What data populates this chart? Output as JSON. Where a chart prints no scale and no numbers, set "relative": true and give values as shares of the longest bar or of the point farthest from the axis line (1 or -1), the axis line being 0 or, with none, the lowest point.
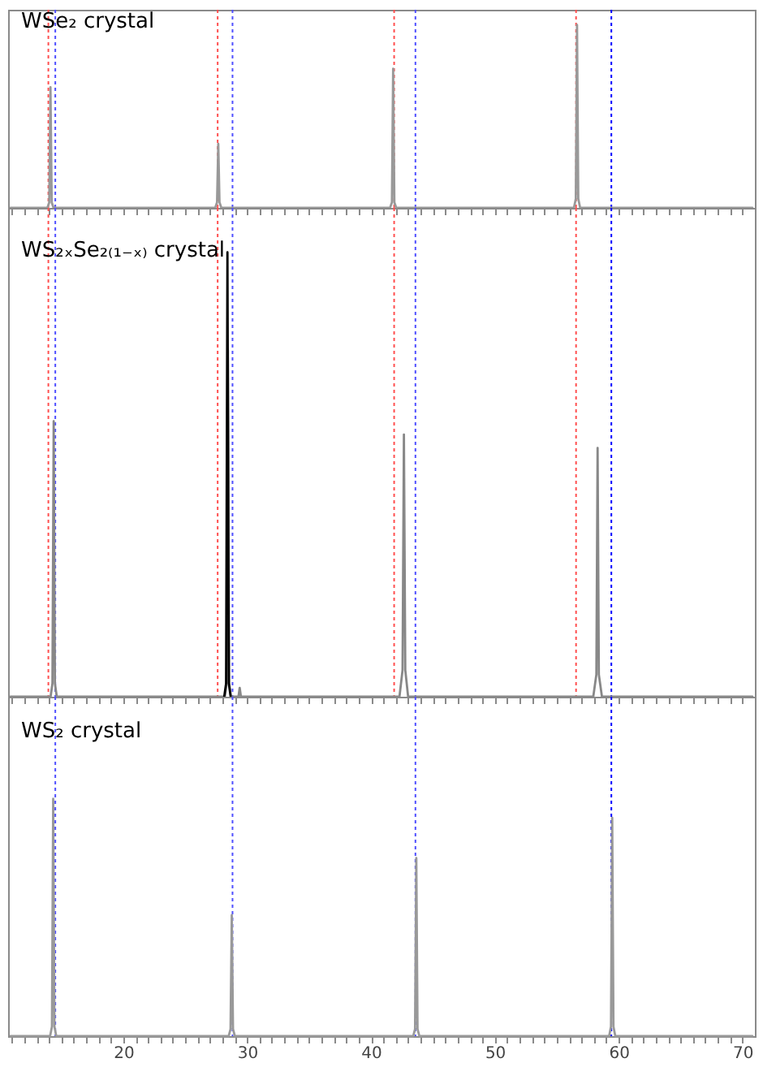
{
  "chart_data": [
    {
      "type": "line",
      "title": "WSe₂ crystal",
      "relative": true,
      "tick_labels": false,
      "xlim": [
        10.7,
        71
      ],
      "xticks": [
        {
          "value": 11,
          "label": null
        },
        {
          "value": 12,
          "label": null
        },
        {
          "value": 13,
          "label": null
        },
        {
          "value": 14,
          "label": null
        },
        {
          "value": 15,
          "label": null
        },
        {
          "value": 16,
          "label": null
        },
        {
          "value": 17,
          "label": null
        },
        {
          "value": 18,
          "label": null
        },
        {
          "value": 19,
          "label": null
        },
        20,
        {
          "value": 21,
          "label": null
        },
        {
          "value": 22,
          "label": null
        },
        {
          "value": 23,
          "label": null
        },
        {
          "value": 24,
          "label": null
        },
        {
          "value": 25,
          "label": null
        },
        {
          "value": 26,
          "label": null
        },
        {
          "value": 27,
          "label": null
        },
        {
          "value": 28,
          "label": null
        },
        {
          "value": 29,
          "label": null
        },
        30,
        {
          "value": 31,
          "label": null
        },
        {
          "value": 32,
          "label": null
        },
        {
          "value": 33,
          "label": null
        },
        {
          "value": 34,
          "label": null
        },
        {
          "value": 35,
          "label": null
        },
        {
          "value": 36,
          "label": null
        },
        {
          "value": 37,
          "label": null
        },
        {
          "value": 38,
          "label": null
        },
        {
          "value": 39,
          "label": null
        },
        40,
        {
          "value": 41,
          "label": null
        },
        {
          "value": 42,
          "label": null
        },
        {
          "value": 43,
          "label": null
        },
        {
          "value": 44,
          "label": null
        },
        {
          "value": 45,
          "label": null
        },
        {
          "value": 46,
          "label": null
        },
        {
          "value": 47,
          "label": null
        },
        {
          "value": 48,
          "label": null
        },
        {
          "value": 49,
          "label": null
        },
        50,
        {
          "value": 51,
          "label": null
        },
        {
          "value": 52,
          "label": null
        },
        {
          "value": 53,
          "label": null
        },
        {
          "value": 54,
          "label": null
        },
        {
          "value": 55,
          "label": null
        },
        {
          "value": 56,
          "label": null
        },
        {
          "value": 57,
          "label": null
        },
        {
          "value": 58,
          "label": null
        },
        {
          "value": 59,
          "label": null
        },
        60,
        {
          "value": 61,
          "label": null
        },
        {
          "value": 62,
          "label": null
        },
        {
          "value": 63,
          "label": null
        },
        {
          "value": 64,
          "label": null
        },
        {
          "value": 65,
          "label": null
        },
        {
          "value": 66,
          "label": null
        },
        {
          "value": 67,
          "label": null
        },
        {
          "value": 68,
          "label": null
        },
        {
          "value": 69,
          "label": null
        },
        70
      ],
      "series": [
        {
          "color": "#999999",
          "x": [
            10.9,
            13.87,
            14.02,
            14.12,
            14.22,
            14.37,
            27.42,
            27.57,
            27.67,
            27.77,
            27.92,
            41.54,
            41.69,
            41.79,
            41.89,
            42.04,
            56.39,
            56.54,
            56.64,
            56.74,
            56.89,
            70.8
          ],
          "values": [
            0,
            0,
            0.03,
            0.66,
            0.03,
            0,
            0,
            0.03,
            0.35,
            0.03,
            0,
            0,
            0.03,
            0.76,
            0.03,
            0,
            0,
            0.05,
            1,
            0.05,
            0,
            0
          ]
        }
      ],
      "ref_lines": [
        {
          "axis": "x",
          "value": 13.95,
          "color": "#ff5050",
          "line_style": "dotted"
        },
        {
          "axis": "x",
          "value": 27.62,
          "color": "#ff5050",
          "line_style": "dotted"
        },
        {
          "axis": "x",
          "value": 41.87,
          "color": "#ff5050",
          "line_style": "dotted"
        },
        {
          "axis": "x",
          "value": 56.56,
          "color": "#ff5050",
          "line_style": "dotted"
        },
        {
          "axis": "x",
          "value": 14.51,
          "color": "#5050ff",
          "line_style": "dotted"
        },
        {
          "axis": "x",
          "value": 28.82,
          "color": "#5050ff",
          "line_style": "dotted"
        },
        {
          "axis": "x",
          "value": 43.59,
          "color": "#5050ff",
          "line_style": "dotted"
        },
        {
          "axis": "x",
          "value": 59.41,
          "color": "#0000ff",
          "line_style": "dotted"
        }
      ]
    },
    {
      "type": "line",
      "title": "WS₂ₓSe₂₍₁₋ₓ₎ crystal",
      "relative": true,
      "tick_labels": false,
      "xlim": [
        10.7,
        71
      ],
      "xticks": [
        {
          "value": 11,
          "label": null
        },
        {
          "value": 12,
          "label": null
        },
        {
          "value": 13,
          "label": null
        },
        {
          "value": 14,
          "label": null
        },
        {
          "value": 15,
          "label": null
        },
        {
          "value": 16,
          "label": null
        },
        {
          "value": 17,
          "label": null
        },
        {
          "value": 18,
          "label": null
        },
        {
          "value": 19,
          "label": null
        },
        20,
        {
          "value": 21,
          "label": null
        },
        {
          "value": 22,
          "label": null
        },
        {
          "value": 23,
          "label": null
        },
        {
          "value": 24,
          "label": null
        },
        {
          "value": 25,
          "label": null
        },
        {
          "value": 26,
          "label": null
        },
        {
          "value": 27,
          "label": null
        },
        {
          "value": 28,
          "label": null
        },
        {
          "value": 29,
          "label": null
        },
        30,
        {
          "value": 31,
          "label": null
        },
        {
          "value": 32,
          "label": null
        },
        {
          "value": 33,
          "label": null
        },
        {
          "value": 34,
          "label": null
        },
        {
          "value": 35,
          "label": null
        },
        {
          "value": 36,
          "label": null
        },
        {
          "value": 37,
          "label": null
        },
        {
          "value": 38,
          "label": null
        },
        {
          "value": 39,
          "label": null
        },
        40,
        {
          "value": 41,
          "label": null
        },
        {
          "value": 42,
          "label": null
        },
        {
          "value": 43,
          "label": null
        },
        {
          "value": 44,
          "label": null
        },
        {
          "value": 45,
          "label": null
        },
        {
          "value": 46,
          "label": null
        },
        {
          "value": 47,
          "label": null
        },
        {
          "value": 48,
          "label": null
        },
        {
          "value": 49,
          "label": null
        },
        50,
        {
          "value": 51,
          "label": null
        },
        {
          "value": 52,
          "label": null
        },
        {
          "value": 53,
          "label": null
        },
        {
          "value": 54,
          "label": null
        },
        {
          "value": 55,
          "label": null
        },
        {
          "value": 56,
          "label": null
        },
        {
          "value": 57,
          "label": null
        },
        {
          "value": 58,
          "label": null
        },
        {
          "value": 59,
          "label": null
        },
        60,
        {
          "value": 61,
          "label": null
        },
        {
          "value": 62,
          "label": null
        },
        {
          "value": 63,
          "label": null
        },
        {
          "value": 64,
          "label": null
        },
        {
          "value": 65,
          "label": null
        },
        {
          "value": 66,
          "label": null
        },
        {
          "value": 67,
          "label": null
        },
        {
          "value": 68,
          "label": null
        },
        {
          "value": 69,
          "label": null
        },
        70
      ],
      "series": [
        {
          "color": "#888888",
          "x": [
            10.9,
            14.13,
            14.28,
            14.38,
            14.48,
            14.63,
            28.2,
            28.35,
            28.45,
            28.55,
            28.7,
            29.3,
            29.4,
            29.5,
            42.3,
            42.55,
            42.66,
            42.77,
            43.0,
            57.95,
            58.2,
            58.3,
            58.4,
            58.65,
            70.8
          ],
          "values": [
            0,
            0,
            0.03,
            0.62,
            0.03,
            0,
            0,
            0.03,
            0.78,
            0.03,
            0,
            0,
            0.02,
            0,
            0,
            0.06,
            0.59,
            0.06,
            0,
            0,
            0.05,
            0.56,
            0.05,
            0,
            0
          ]
        },
        {
          "color": "#000000",
          "x": [
            28.15,
            28.3,
            28.41,
            28.52,
            28.67
          ],
          "values": [
            0,
            0.03,
            1,
            0.03,
            0
          ]
        }
      ],
      "ref_lines": [
        {
          "axis": "x",
          "value": 13.95,
          "color": "#ff5050",
          "line_style": "dotted"
        },
        {
          "axis": "x",
          "value": 27.62,
          "color": "#ff5050",
          "line_style": "dotted"
        },
        {
          "axis": "x",
          "value": 41.87,
          "color": "#ff5050",
          "line_style": "dotted"
        },
        {
          "axis": "x",
          "value": 56.56,
          "color": "#ff5050",
          "line_style": "dotted"
        },
        {
          "axis": "x",
          "value": 14.51,
          "color": "#5050ff",
          "line_style": "dotted"
        },
        {
          "axis": "x",
          "value": 28.82,
          "color": "#5050ff",
          "line_style": "dotted"
        },
        {
          "axis": "x",
          "value": 43.59,
          "color": "#5050ff",
          "line_style": "dotted"
        },
        {
          "axis": "x",
          "value": 59.41,
          "color": "#0000ff",
          "line_style": "dotted"
        }
      ]
    },
    {
      "type": "line",
      "title": "WS₂ crystal",
      "relative": true,
      "xlim": [
        10.7,
        71
      ],
      "xticks": [
        {
          "value": 11,
          "label": null
        },
        {
          "value": 12,
          "label": null
        },
        {
          "value": 13,
          "label": null
        },
        {
          "value": 14,
          "label": null
        },
        {
          "value": 15,
          "label": null
        },
        {
          "value": 16,
          "label": null
        },
        {
          "value": 17,
          "label": null
        },
        {
          "value": 18,
          "label": null
        },
        {
          "value": 19,
          "label": null
        },
        20,
        {
          "value": 21,
          "label": null
        },
        {
          "value": 22,
          "label": null
        },
        {
          "value": 23,
          "label": null
        },
        {
          "value": 24,
          "label": null
        },
        {
          "value": 25,
          "label": null
        },
        {
          "value": 26,
          "label": null
        },
        {
          "value": 27,
          "label": null
        },
        {
          "value": 28,
          "label": null
        },
        {
          "value": 29,
          "label": null
        },
        30,
        {
          "value": 31,
          "label": null
        },
        {
          "value": 32,
          "label": null
        },
        {
          "value": 33,
          "label": null
        },
        {
          "value": 34,
          "label": null
        },
        {
          "value": 35,
          "label": null
        },
        {
          "value": 36,
          "label": null
        },
        {
          "value": 37,
          "label": null
        },
        {
          "value": 38,
          "label": null
        },
        {
          "value": 39,
          "label": null
        },
        40,
        {
          "value": 41,
          "label": null
        },
        {
          "value": 42,
          "label": null
        },
        {
          "value": 43,
          "label": null
        },
        {
          "value": 44,
          "label": null
        },
        {
          "value": 45,
          "label": null
        },
        {
          "value": 46,
          "label": null
        },
        {
          "value": 47,
          "label": null
        },
        {
          "value": 48,
          "label": null
        },
        {
          "value": 49,
          "label": null
        },
        50,
        {
          "value": 51,
          "label": null
        },
        {
          "value": 52,
          "label": null
        },
        {
          "value": 53,
          "label": null
        },
        {
          "value": 54,
          "label": null
        },
        {
          "value": 55,
          "label": null
        },
        {
          "value": 56,
          "label": null
        },
        {
          "value": 57,
          "label": null
        },
        {
          "value": 58,
          "label": null
        },
        {
          "value": 59,
          "label": null
        },
        60,
        {
          "value": 61,
          "label": null
        },
        {
          "value": 62,
          "label": null
        },
        {
          "value": 63,
          "label": null
        },
        {
          "value": 64,
          "label": null
        },
        {
          "value": 65,
          "label": null
        },
        {
          "value": 66,
          "label": null
        },
        {
          "value": 67,
          "label": null
        },
        {
          "value": 68,
          "label": null
        },
        {
          "value": 69,
          "label": null
        },
        70
      ],
      "series": [
        {
          "color": "#999999",
          "x": [
            10.9,
            14.09,
            14.24,
            14.34,
            14.44,
            14.59,
            28.51,
            28.66,
            28.76,
            28.86,
            29.01,
            43.41,
            43.56,
            43.66,
            43.76,
            43.91,
            59.23,
            59.38,
            59.48,
            59.58,
            59.73,
            70.8
          ],
          "values": [
            0,
            0,
            0.04,
            1,
            0.04,
            0,
            0,
            0.03,
            0.51,
            0.03,
            0,
            0,
            0.03,
            0.75,
            0.03,
            0,
            0,
            0.04,
            0.92,
            0.04,
            0,
            0
          ]
        }
      ],
      "ref_lines": [
        {
          "axis": "x",
          "value": 14.51,
          "color": "#5050ff",
          "line_style": "dotted"
        },
        {
          "axis": "x",
          "value": 28.82,
          "color": "#5050ff",
          "line_style": "dotted"
        },
        {
          "axis": "x",
          "value": 43.59,
          "color": "#5050ff",
          "line_style": "dotted"
        },
        {
          "axis": "x",
          "value": 59.41,
          "color": "#0000ff",
          "line_style": "dotted"
        }
      ]
    }
  ]
}
